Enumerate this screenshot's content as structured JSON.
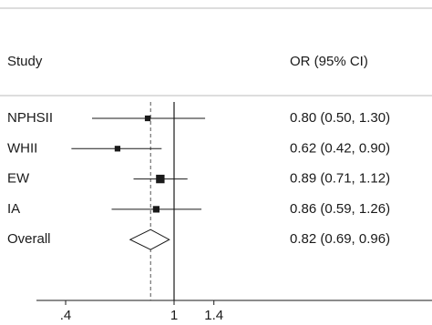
{
  "chart_data": {
    "type": "forest",
    "columns": [
      "Study",
      "OR (95% CI)"
    ],
    "categories": [
      "NPHSII",
      "WHII",
      "EW",
      "IA",
      "Overall"
    ],
    "values": [
      0.8,
      0.62,
      0.89,
      0.86,
      0.82
    ],
    "lower": [
      0.5,
      0.42,
      0.71,
      0.59,
      0.69
    ],
    "upper": [
      1.3,
      0.9,
      1.12,
      1.26,
      0.96
    ],
    "weights": [
      2,
      2,
      6,
      3,
      null
    ],
    "value_labels": [
      "0.80 (0.50, 1.30)",
      "0.62 (0.42, 0.90)",
      "0.89 (0.71, 1.12)",
      "0.86 (0.59, 1.26)",
      "0.82 (0.69, 0.96)"
    ],
    "overall_index": 4,
    "reference_line": 1,
    "log_scale": true,
    "xlim": [
      0.25,
      8
    ],
    "xticks": [
      {
        "value": 0.4,
        "label": ".4"
      },
      1,
      1.4
    ],
    "color": "#1a1a1a"
  }
}
